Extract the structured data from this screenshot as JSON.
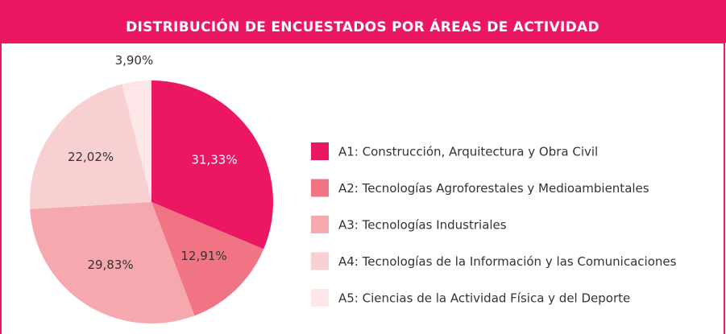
{
  "chart_data": {
    "type": "pie",
    "title": "DISTRIBUCIÓN DE ENCUESTADOS POR ÁREAS DE ACTIVIDAD",
    "categories": [
      "A1: Construcción, Arquitectura y Obra Civil",
      "A2: Tecnologías Agroforestales y Medioambientales",
      "A3: Tecnologías Industriales",
      "A4: Tecnologías de la Información y las Comunicaciones",
      "A5: Ciencias de la Actividad Física y del Deporte"
    ],
    "values": [
      31.33,
      12.91,
      29.83,
      22.02,
      3.9
    ],
    "value_labels": [
      "31,33%",
      "12,91%",
      "29,83%",
      "22,02%",
      "3,90%"
    ],
    "colors": [
      "#ec1763",
      "#f07484",
      "#f5a9ae",
      "#f9d0d2",
      "#fde6e7"
    ],
    "header_color": "#ec1763"
  }
}
